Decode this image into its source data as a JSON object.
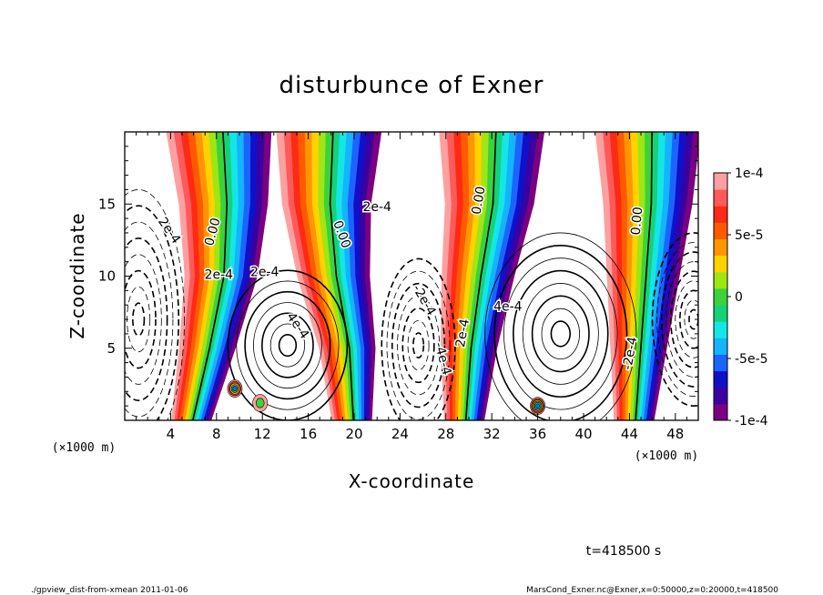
{
  "chart_data": {
    "type": "heatmap",
    "title": "disturbunce of Exner",
    "xlabel": "X-coordinate",
    "ylabel": "Z-coordinate",
    "x_unit_label": "(×1000 m)",
    "x_unit_label_right": "(×1000 m)",
    "xlim": [
      0,
      50
    ],
    "ylim": [
      0,
      20
    ],
    "x_ticks": [
      "4",
      "8",
      "12",
      "16",
      "20",
      "24",
      "28",
      "32",
      "36",
      "40",
      "44",
      "48"
    ],
    "y_ticks": [
      "5",
      "10",
      "15"
    ],
    "colorbar": {
      "range": [
        -0.0001,
        0.0001
      ],
      "tick_labels": [
        "1e-4",
        "5e-5",
        "0",
        "-5e-5",
        "-1e-4"
      ],
      "colors": [
        "#7a0080",
        "#3a00a0",
        "#1010c8",
        "#1c64ff",
        "#14b4ff",
        "#14e6e6",
        "#14d278",
        "#3cd23c",
        "#9ee614",
        "#ffd200",
        "#ff9600",
        "#ff5a00",
        "#ff2a14",
        "#ff5a5a",
        "#ffa0a0"
      ]
    },
    "filled_plumes": [
      {
        "x_center": [
          5.8,
          7.2,
          8.4,
          8.6,
          8.2
        ],
        "z": [
          0,
          5,
          10,
          15,
          20
        ],
        "sign": "positive-left"
      },
      {
        "x_center": [
          19.8,
          19.4,
          18.2,
          17.6,
          17.8
        ],
        "z": [
          0,
          5,
          10,
          15,
          20
        ],
        "sign": "positive-left"
      },
      {
        "x_center": [
          29.6,
          30.0,
          30.8,
          31.8,
          32.0
        ],
        "z": [
          0,
          5,
          10,
          15,
          20
        ],
        "sign": "positive-left"
      },
      {
        "x_center": [
          44.4,
          44.8,
          45.2,
          45.6,
          45.6
        ],
        "z": [
          0,
          5,
          10,
          15,
          20
        ],
        "sign": "positive-left"
      }
    ],
    "contour_labels": [
      "0.00",
      "0.00",
      "0.00",
      "0.00",
      "2e-4",
      "4e-4",
      "2e-4",
      "-2e-4",
      "-4e-4",
      "2e-4",
      "4e-4",
      "-2e-4",
      "2e-4",
      "2e-4"
    ],
    "positive_blobs": [
      {
        "x": 9.6,
        "z": 2.2,
        "levels": 5
      },
      {
        "x": 36.0,
        "z": 1.0,
        "levels": 6
      },
      {
        "x": 11.8,
        "z": 1.2,
        "levels": 2
      }
    ]
  },
  "footer": {
    "time": "t=418500 s",
    "left": "./gpview_dist-from-xmean  2011-01-06",
    "right": "MarsCond_Exner.nc@Exner,x=0:50000,z=0:20000,t=418500"
  }
}
